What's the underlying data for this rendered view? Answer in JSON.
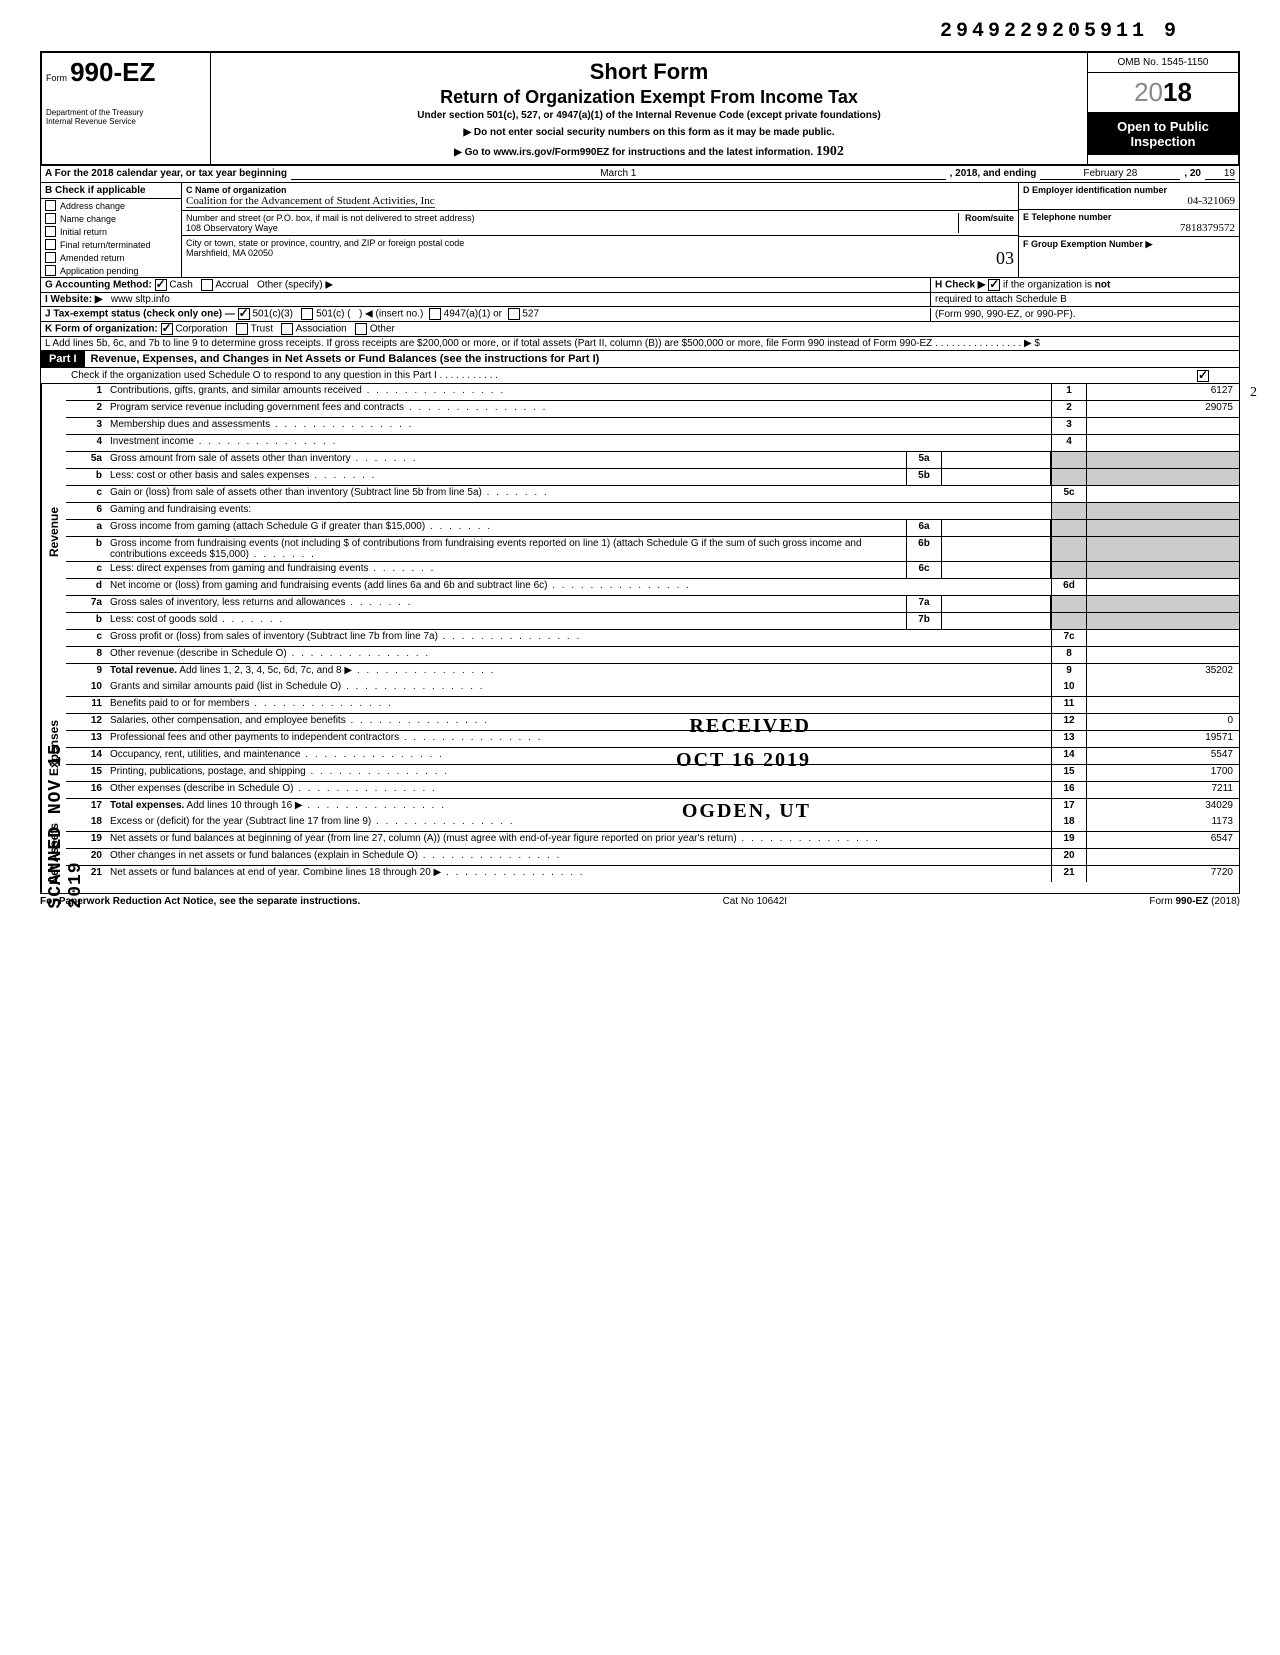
{
  "top_number": "2949229205911 9",
  "header": {
    "form_prefix": "Form",
    "form_number": "990-EZ",
    "dept": "Department of the Treasury",
    "irs": "Internal Revenue Service",
    "short_form": "Short Form",
    "title": "Return of Organization Exempt From Income Tax",
    "under": "Under section 501(c), 527, or 4947(a)(1) of the Internal Revenue Code (except private foundations)",
    "ssn_note": "▶ Do not enter social security numbers on this form as it may be made public.",
    "goto": "▶ Go to www.irs.gov/Form990EZ for instructions and the latest information.",
    "handwritten_irs": "1902",
    "omb": "OMB No. 1545-1150",
    "year": "2018",
    "open": "Open to Public Inspection"
  },
  "row_a": {
    "prefix": "A For the 2018 calendar year, or tax year beginning",
    "begin": "March 1",
    "mid": ", 2018, and ending",
    "end_month": "February 28",
    "end_year_prefix": ", 20",
    "end_year": "19"
  },
  "section_b": {
    "title": "B Check if applicable",
    "items": [
      "Address change",
      "Name change",
      "Initial return",
      "Final return/terminated",
      "Amended return",
      "Application pending"
    ]
  },
  "section_c": {
    "name_label": "C Name of organization",
    "name": "Coalition for the Advancement of Student Activities, Inc",
    "street_label": "Number and street (or P.O. box, if mail is not delivered to street address)",
    "street": "108 Observatory Waye",
    "room_label": "Room/suite",
    "city_label": "City or town, state or province, country, and ZIP or foreign postal code",
    "city": "Marshfield, MA 02050",
    "city_hand": "03"
  },
  "section_d": {
    "label": "D Employer identification number",
    "val": "04-321069"
  },
  "section_e": {
    "label": "E Telephone number",
    "val": "7818379572"
  },
  "section_f": {
    "label": "F Group Exemption Number ▶"
  },
  "row_g": {
    "label": "G Accounting Method:",
    "cash": "Cash",
    "accrual": "Accrual",
    "other": "Other (specify) ▶"
  },
  "row_h": {
    "text": "H Check ▶",
    "text2": "if the organization is not required to attach Schedule B (Form 990, 990-EZ, or 990-PF)."
  },
  "row_i": {
    "label": "I Website: ▶",
    "val": "www sltp.info"
  },
  "row_j": {
    "label": "J Tax-exempt status (check only one) —",
    "opt1": "501(c)(3)",
    "opt2": "501(c) (",
    "opt2b": ") ◀ (insert no.)",
    "opt3": "4947(a)(1) or",
    "opt4": "527"
  },
  "row_k": {
    "label": "K Form of organization:",
    "corp": "Corporation",
    "trust": "Trust",
    "assoc": "Association",
    "other": "Other"
  },
  "row_l": "L Add lines 5b, 6c, and 7b to line 9 to determine gross receipts. If gross receipts are $200,000 or more, or if total assets (Part II, column (B)) are $500,000 or more, file Form 990 instead of Form 990-EZ .  .  .  .  .  .  .  .  .  .  .  .  .  .  .  .  ▶   $",
  "part1": {
    "label": "Part I",
    "title": "Revenue, Expenses, and Changes in Net Assets or Fund Balances (see the instructions for Part I)",
    "sched_o": "Check if the organization used Schedule O to respond to any question in this Part I .  .  .  .  .  .  .  .  .  .  .",
    "sched_o_checked": "✓"
  },
  "sections": {
    "revenue": "Revenue",
    "expenses": "Expenses",
    "netassets": "Net Assets"
  },
  "lines": [
    {
      "n": "1",
      "d": "Contributions, gifts, grants, and similar amounts received",
      "dots": 1,
      "rn": "1",
      "rv": "6127",
      "hand": "2"
    },
    {
      "n": "2",
      "d": "Program service revenue including government fees and contracts",
      "dots": 1,
      "rn": "2",
      "rv": "29075"
    },
    {
      "n": "3",
      "d": "Membership dues and assessments",
      "dots": 1,
      "rn": "3",
      "rv": ""
    },
    {
      "n": "4",
      "d": "Investment income",
      "dots": 1,
      "rn": "4",
      "rv": ""
    },
    {
      "n": "5a",
      "d": "Gross amount from sale of assets other than inventory",
      "dots": 2,
      "ib": "5a",
      "iv": ""
    },
    {
      "n": "b",
      "d": "Less: cost or other basis and sales expenses",
      "dots": 2,
      "ib": "5b",
      "iv": ""
    },
    {
      "n": "c",
      "d": "Gain or (loss) from sale of assets other than inventory (Subtract line 5b from line 5a)",
      "dots": 2,
      "rn": "5c",
      "rv": ""
    },
    {
      "n": "6",
      "d": "Gaming and fundraising events:"
    },
    {
      "n": "a",
      "d": "Gross income from gaming (attach Schedule G if greater than $15,000)",
      "dots": 2,
      "ib": "6a",
      "iv": ""
    },
    {
      "n": "b",
      "d": "Gross income from fundraising events (not including  $                       of contributions from fundraising events reported on line 1) (attach Schedule G if the sum of such gross income and contributions exceeds $15,000)",
      "dots": 2,
      "ib": "6b",
      "iv": ""
    },
    {
      "n": "c",
      "d": "Less: direct expenses from gaming and fundraising events",
      "dots": 2,
      "ib": "6c",
      "iv": ""
    },
    {
      "n": "d",
      "d": "Net income or (loss) from gaming and fundraising events (add lines 6a and 6b and subtract line 6c)",
      "dots": 1,
      "rn": "6d",
      "rv": ""
    },
    {
      "n": "7a",
      "d": "Gross sales of inventory, less returns and allowances",
      "dots": 2,
      "ib": "7a",
      "iv": ""
    },
    {
      "n": "b",
      "d": "Less: cost of goods sold",
      "dots": 2,
      "ib": "7b",
      "iv": ""
    },
    {
      "n": "c",
      "d": "Gross profit or (loss) from sales of inventory (Subtract line 7b from line 7a)",
      "dots": 1,
      "rn": "7c",
      "rv": ""
    },
    {
      "n": "8",
      "d": "Other revenue (describe in Schedule O)",
      "dots": 1,
      "rn": "8",
      "rv": ""
    },
    {
      "n": "9",
      "d": "Total revenue. Add lines 1, 2, 3, 4, 5c, 6d, 7c, and 8",
      "dots": 1,
      "bold": 1,
      "arrow": 1,
      "rn": "9",
      "rv": "35202"
    }
  ],
  "exp_lines": [
    {
      "n": "10",
      "d": "Grants and similar amounts paid (list in Schedule O)",
      "dots": 1,
      "rn": "10",
      "rv": ""
    },
    {
      "n": "11",
      "d": "Benefits paid to or for members",
      "dots": 1,
      "rn": "11",
      "rv": ""
    },
    {
      "n": "12",
      "d": "Salaries, other compensation, and employee benefits",
      "dots": 1,
      "rn": "12",
      "rv": "0",
      "stamp": "RECEIVED"
    },
    {
      "n": "13",
      "d": "Professional fees and other payments to independent contractors",
      "dots": 1,
      "rn": "13",
      "rv": "19571"
    },
    {
      "n": "14",
      "d": "Occupancy, rent, utilities, and maintenance",
      "dots": 1,
      "rn": "14",
      "rv": "5547",
      "stamp": "OCT 16 2019"
    },
    {
      "n": "15",
      "d": "Printing, publications, postage, and shipping",
      "dots": 1,
      "rn": "15",
      "rv": "1700"
    },
    {
      "n": "16",
      "d": "Other expenses (describe in Schedule O)",
      "dots": 1,
      "rn": "16",
      "rv": "7211"
    },
    {
      "n": "17",
      "d": "Total expenses. Add lines 10 through 16",
      "dots": 1,
      "bold": 1,
      "arrow": 1,
      "rn": "17",
      "rv": "34029",
      "stamp": "OGDEN, UT"
    }
  ],
  "net_lines": [
    {
      "n": "18",
      "d": "Excess or (deficit) for the year (Subtract line 17 from line 9)",
      "dots": 1,
      "rn": "18",
      "rv": "1173"
    },
    {
      "n": "19",
      "d": "Net assets or fund balances at beginning of year (from line 27, column (A)) (must agree with end-of-year figure reported on prior year's return)",
      "dots": 1,
      "rn": "19",
      "rv": "6547"
    },
    {
      "n": "20",
      "d": "Other changes in net assets or fund balances (explain in Schedule O)",
      "dots": 1,
      "rn": "20",
      "rv": ""
    },
    {
      "n": "21",
      "d": "Net assets or fund balances at end of year. Combine lines 18 through 20",
      "dots": 1,
      "arrow": 1,
      "rn": "21",
      "rv": "7720"
    }
  ],
  "footer": {
    "left": "For Paperwork Reduction Act Notice, see the separate instructions.",
    "mid": "Cat No 10642I",
    "right": "Form 990-EZ (2018)"
  },
  "scanned": "SCANNED NOV 15 2019"
}
